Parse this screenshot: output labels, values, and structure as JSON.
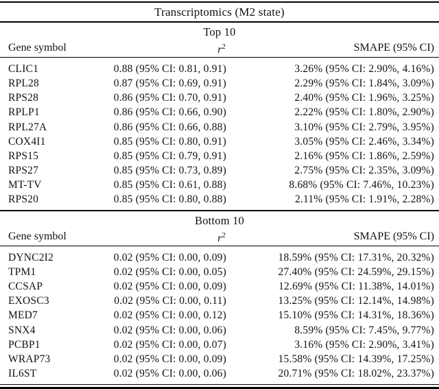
{
  "title": "Transcriptomics (M2 state)",
  "colors": {
    "text": "#111111",
    "rule": "#000000",
    "background": "#ffffff"
  },
  "sections": [
    {
      "label": "Top 10",
      "header": {
        "gene": "Gene symbol",
        "r2_base": "r",
        "r2_sup": "2",
        "smape": "SMAPE (95% CI)"
      },
      "rows": [
        {
          "gene": "CLIC1",
          "r2": "0.88 (95% CI: 0.81, 0.91)",
          "smape": "3.26% (95% CI: 2.90%, 4.16%)"
        },
        {
          "gene": "RPL28",
          "r2": "0.87 (95% CI: 0.69, 0.91)",
          "smape": "2.29% (95% CI: 1.84%, 3.09%)"
        },
        {
          "gene": "RPS28",
          "r2": "0.86 (95% CI: 0.70, 0.91)",
          "smape": "2.40% (95% CI: 1.96%, 3.25%)"
        },
        {
          "gene": "RPLP1",
          "r2": "0.86 (95% CI: 0.66, 0.90)",
          "smape": "2.22% (95% CI: 1.80%, 2.90%)"
        },
        {
          "gene": "RPL27A",
          "r2": "0.86 (95% CI: 0.66, 0.88)",
          "smape": "3.10% (95% CI: 2.79%, 3.95%)"
        },
        {
          "gene": "COX4I1",
          "r2": "0.85 (95% CI: 0.80, 0.91)",
          "smape": "3.05% (95% CI: 2.46%, 3.34%)"
        },
        {
          "gene": "RPS15",
          "r2": "0.85 (95% CI: 0.79, 0.91)",
          "smape": "2.16% (95% CI: 1.86%, 2.59%)"
        },
        {
          "gene": "RPS27",
          "r2": "0.85 (95% CI: 0.73, 0.89)",
          "smape": "2.75% (95% CI: 2.35%, 3.09%)"
        },
        {
          "gene": "MT-TV",
          "r2": "0.85 (95% CI: 0.61, 0.88)",
          "smape": "8.68% (95% CI: 7.46%, 10.23%)"
        },
        {
          "gene": "RPS20",
          "r2": "0.85 (95% CI: 0.80, 0.88)",
          "smape": "2.11% (95% CI: 1.91%, 2.28%)"
        }
      ]
    },
    {
      "label": "Bottom 10",
      "header": {
        "gene": "Gene symbol",
        "r2_base": "r",
        "r2_sup": "2",
        "smape": "SMAPE (95% CI)"
      },
      "rows": [
        {
          "gene": "DYNC2I2",
          "r2": "0.02 (95% CI: 0.00, 0.09)",
          "smape": "18.59% (95% CI: 17.31%, 20.32%)"
        },
        {
          "gene": "TPM1",
          "r2": "0.02 (95% CI: 0.00, 0.05)",
          "smape": "27.40% (95% CI: 24.59%, 29.15%)"
        },
        {
          "gene": "CCSAP",
          "r2": "0.02 (95% CI: 0.00, 0.09)",
          "smape": "12.69% (95% CI: 11.38%, 14.01%)"
        },
        {
          "gene": "EXOSC3",
          "r2": "0.02 (95% CI: 0.00, 0.11)",
          "smape": "13.25% (95% CI: 12.14%, 14.98%)"
        },
        {
          "gene": "MED7",
          "r2": "0.02 (95% CI: 0.00, 0.12)",
          "smape": "15.10% (95% CI: 14.31%, 18.36%)"
        },
        {
          "gene": "SNX4",
          "r2": "0.02 (95% CI: 0.00, 0.06)",
          "smape": "8.59% (95% CI: 7.45%, 9.77%)"
        },
        {
          "gene": "PCBP1",
          "r2": "0.02 (95% CI: 0.00, 0.07)",
          "smape": "3.16% (95% CI: 2.90%, 3.41%)"
        },
        {
          "gene": "WRAP73",
          "r2": "0.02 (95% CI: 0.00, 0.09)",
          "smape": "15.58% (95% CI: 14.39%, 17.25%)"
        },
        {
          "gene": "IL6ST",
          "r2": "0.02 (95% CI: 0.00, 0.06)",
          "smape": "20.71% (95% CI: 18.02%, 23.37%)"
        }
      ]
    }
  ]
}
